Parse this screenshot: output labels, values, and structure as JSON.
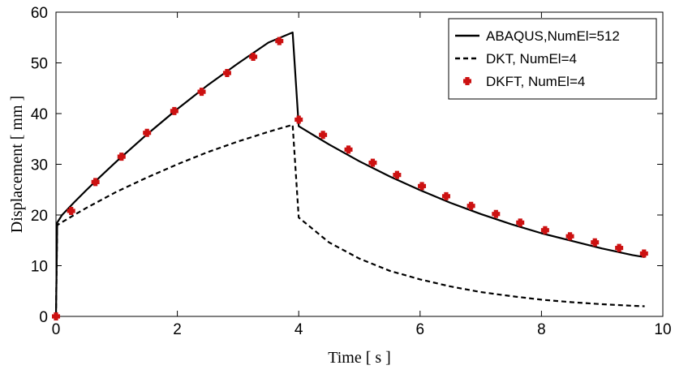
{
  "chart_data": {
    "type": "line",
    "title": "",
    "xlabel": "Time [ s ]",
    "ylabel": "Displacement [ mm ]",
    "xlim": [
      0,
      10
    ],
    "ylim": [
      0,
      60
    ],
    "xticks": [
      0,
      2,
      4,
      6,
      8,
      10
    ],
    "yticks": [
      0,
      10,
      20,
      30,
      40,
      50,
      60
    ],
    "grid": false,
    "legend_position": "top-right",
    "series": [
      {
        "name": "ABAQUS,NumEl=512",
        "style": "solid",
        "color": "#000000",
        "x": [
          0,
          0.02,
          0.1,
          0.3,
          0.5,
          0.75,
          1.0,
          1.5,
          2.0,
          2.5,
          3.0,
          3.5,
          3.9,
          4.0,
          4.5,
          5.0,
          5.5,
          6.0,
          6.5,
          7.0,
          7.5,
          8.0,
          8.5,
          9.0,
          9.5,
          9.7
        ],
        "y": [
          0,
          18.5,
          20.0,
          22.5,
          24.9,
          27.8,
          30.6,
          35.9,
          40.9,
          45.6,
          49.9,
          54.0,
          56.0,
          37.5,
          33.9,
          30.6,
          27.6,
          24.9,
          22.4,
          20.2,
          18.2,
          16.4,
          14.9,
          13.4,
          12.1,
          11.7
        ]
      },
      {
        "name": "DKT, NumEl=4",
        "style": "dashed",
        "color": "#000000",
        "x": [
          0,
          0.02,
          0.1,
          0.3,
          0.5,
          0.75,
          1.0,
          1.5,
          2.0,
          2.5,
          3.0,
          3.5,
          3.9,
          4.0,
          4.5,
          5.0,
          5.5,
          6.0,
          6.5,
          7.0,
          7.5,
          8.0,
          8.5,
          9.0,
          9.5,
          9.7
        ],
        "y": [
          0,
          18.0,
          18.6,
          20.0,
          21.4,
          23.0,
          24.6,
          27.4,
          30.0,
          32.4,
          34.5,
          36.4,
          37.8,
          19.5,
          14.6,
          11.4,
          9.0,
          7.3,
          5.9,
          4.8,
          4.0,
          3.3,
          2.8,
          2.4,
          2.1,
          2.0
        ]
      },
      {
        "name": "DKFT, NumEl=4",
        "style": "markers",
        "color": "#cc1111",
        "x": [
          0,
          0.25,
          0.65,
          1.08,
          1.5,
          1.95,
          2.4,
          2.82,
          3.25,
          3.68,
          4.0,
          4.4,
          4.82,
          5.22,
          5.62,
          6.03,
          6.43,
          6.84,
          7.25,
          7.65,
          8.06,
          8.47,
          8.88,
          9.28,
          9.69
        ],
        "y": [
          0,
          20.8,
          26.5,
          31.5,
          36.2,
          40.5,
          44.3,
          48.0,
          51.2,
          54.3,
          38.8,
          35.8,
          32.9,
          30.3,
          27.9,
          25.7,
          23.7,
          21.8,
          20.2,
          18.5,
          17.0,
          15.8,
          14.6,
          13.5,
          12.4
        ]
      }
    ]
  }
}
